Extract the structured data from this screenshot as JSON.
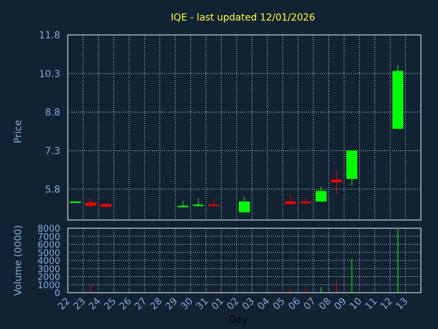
{
  "chart_data": {
    "type": "candlestick",
    "title": "IQE - last updated 12/01/2026",
    "xlabel": "Day",
    "price_panel": {
      "ylabel": "Price",
      "ylim": [
        4.6,
        11.8
      ],
      "yticks": [
        "11.8",
        "10.3",
        "8.8",
        "7.3",
        "5.8"
      ],
      "ytick_values": [
        11.8,
        10.3,
        8.8,
        7.3,
        5.8
      ]
    },
    "volume_panel": {
      "ylabel": "Volume (0000)",
      "ylim": [
        0,
        8000
      ],
      "yticks": [
        "8000",
        "7000",
        "6000",
        "5000",
        "4000",
        "3000",
        "2000",
        "1000",
        "0"
      ],
      "ytick_values": [
        8000,
        7000,
        6000,
        5000,
        4000,
        3000,
        2000,
        1000,
        0
      ]
    },
    "x_labels": [
      "22",
      "23",
      "24",
      "25",
      "26",
      "27",
      "28",
      "29",
      "30",
      "31",
      "01",
      "02",
      "03",
      "04",
      "05",
      "06",
      "07",
      "08",
      "09",
      "10",
      "11",
      "12",
      "13"
    ],
    "candles": [
      {
        "day": "22",
        "open": 5.32,
        "close": 5.32,
        "high": 5.32,
        "low": 5.32,
        "volume": 50
      },
      {
        "day": "23",
        "open": 5.28,
        "close": 5.15,
        "high": 5.45,
        "low": 5.1,
        "volume": 1000
      },
      {
        "day": "24",
        "open": 5.22,
        "close": 5.12,
        "high": 5.28,
        "low": 5.05,
        "volume": 80
      },
      {
        "day": "29",
        "open": 5.1,
        "close": 5.15,
        "high": 5.35,
        "low": 5.1,
        "volume": 60
      },
      {
        "day": "30",
        "open": 5.18,
        "close": 5.2,
        "high": 5.45,
        "low": 5.12,
        "volume": 60
      },
      {
        "day": "31",
        "open": 5.2,
        "close": 5.16,
        "high": 5.4,
        "low": 5.12,
        "volume": 70
      },
      {
        "day": "02",
        "open": 4.9,
        "close": 5.32,
        "high": 5.5,
        "low": 4.9,
        "volume": 120
      },
      {
        "day": "05",
        "open": 5.32,
        "close": 5.22,
        "high": 5.6,
        "low": 5.2,
        "volume": 600
      },
      {
        "day": "06",
        "open": 5.32,
        "close": 5.26,
        "high": 5.45,
        "low": 5.2,
        "volume": 700
      },
      {
        "day": "07",
        "open": 5.32,
        "close": 5.73,
        "high": 5.9,
        "low": 5.3,
        "volume": 700
      },
      {
        "day": "08",
        "open": 6.17,
        "close": 6.07,
        "high": 6.5,
        "low": 5.6,
        "volume": 1500
      },
      {
        "day": "09",
        "open": 6.2,
        "close": 7.3,
        "high": 7.3,
        "low": 5.95,
        "volume": 4200
      },
      {
        "day": "12",
        "open": 8.15,
        "close": 10.4,
        "high": 10.63,
        "low": 8.15,
        "volume": 7900
      }
    ],
    "colors": {
      "up": "#00ff00",
      "down": "#ff0000",
      "grid": "#dddddd",
      "axis": "#ffffff",
      "background": "#112233",
      "title": "#ffff33",
      "labels": "#88aadd"
    },
    "grid": true
  }
}
